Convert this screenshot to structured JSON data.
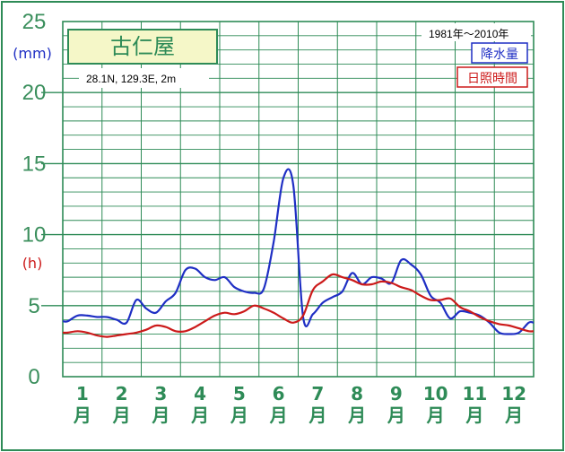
{
  "chart_data": {
    "type": "line",
    "title": "古仁屋",
    "subtitle": "28.1N,  129.3E,  2m",
    "period": "1981年〜2010年",
    "ylabel_left_unit1": "(mm)",
    "ylabel_left_unit2": "(h)",
    "ylim": [
      0,
      25
    ],
    "yticks": [
      "0",
      "5",
      "10",
      "15",
      "20",
      "25"
    ],
    "months": [
      {
        "num": "1",
        "unit": "月"
      },
      {
        "num": "2",
        "unit": "月"
      },
      {
        "num": "3",
        "unit": "月"
      },
      {
        "num": "4",
        "unit": "月"
      },
      {
        "num": "5",
        "unit": "月"
      },
      {
        "num": "6",
        "unit": "月"
      },
      {
        "num": "7",
        "unit": "月"
      },
      {
        "num": "8",
        "unit": "月"
      },
      {
        "num": "9",
        "unit": "月"
      },
      {
        "num": "10",
        "unit": "月"
      },
      {
        "num": "11",
        "unit": "月"
      },
      {
        "num": "12",
        "unit": "月"
      }
    ],
    "x_period": "half-month",
    "series": [
      {
        "name": "降水量",
        "color": "#1f2fc4",
        "values": [
          3.9,
          4.3,
          4.3,
          4.2,
          4.2,
          4.0,
          3.8,
          5.4,
          4.8,
          4.5,
          5.3,
          5.9,
          7.5,
          7.6,
          7.0,
          6.8,
          7.0,
          6.3,
          6.0,
          5.9,
          6.2,
          9.5,
          14.0,
          13.5,
          4.2,
          4.4,
          5.2,
          5.6,
          6.0,
          7.3,
          6.5,
          7.0,
          6.9,
          6.6,
          8.2,
          7.9,
          7.2,
          5.7,
          5.2,
          4.1,
          4.6,
          4.5,
          4.3,
          3.8,
          3.1,
          3.0,
          3.1,
          3.8
        ]
      },
      {
        "name": "日照時間",
        "color": "#cc1a1a",
        "values": [
          3.1,
          3.2,
          3.1,
          2.9,
          2.8,
          2.9,
          3.0,
          3.1,
          3.3,
          3.6,
          3.5,
          3.2,
          3.2,
          3.5,
          3.9,
          4.3,
          4.5,
          4.4,
          4.6,
          5.0,
          4.8,
          4.5,
          4.1,
          3.8,
          4.3,
          6.1,
          6.7,
          7.2,
          7.0,
          6.8,
          6.5,
          6.5,
          6.7,
          6.6,
          6.3,
          6.1,
          5.7,
          5.4,
          5.4,
          5.5,
          4.9,
          4.6,
          4.2,
          3.9,
          3.7,
          3.6,
          3.4,
          3.2
        ]
      }
    ],
    "grid": true,
    "legend_position": "top-right"
  },
  "colors": {
    "frame_border": "#2e8b57",
    "grid": "#2e8b57",
    "axis_text": "#3b8f5d",
    "unit_mm": "#1f2fc4",
    "unit_h": "#cc1a1a",
    "title_fill": "#f5f7c8",
    "title_text": "#2e8b57"
  }
}
